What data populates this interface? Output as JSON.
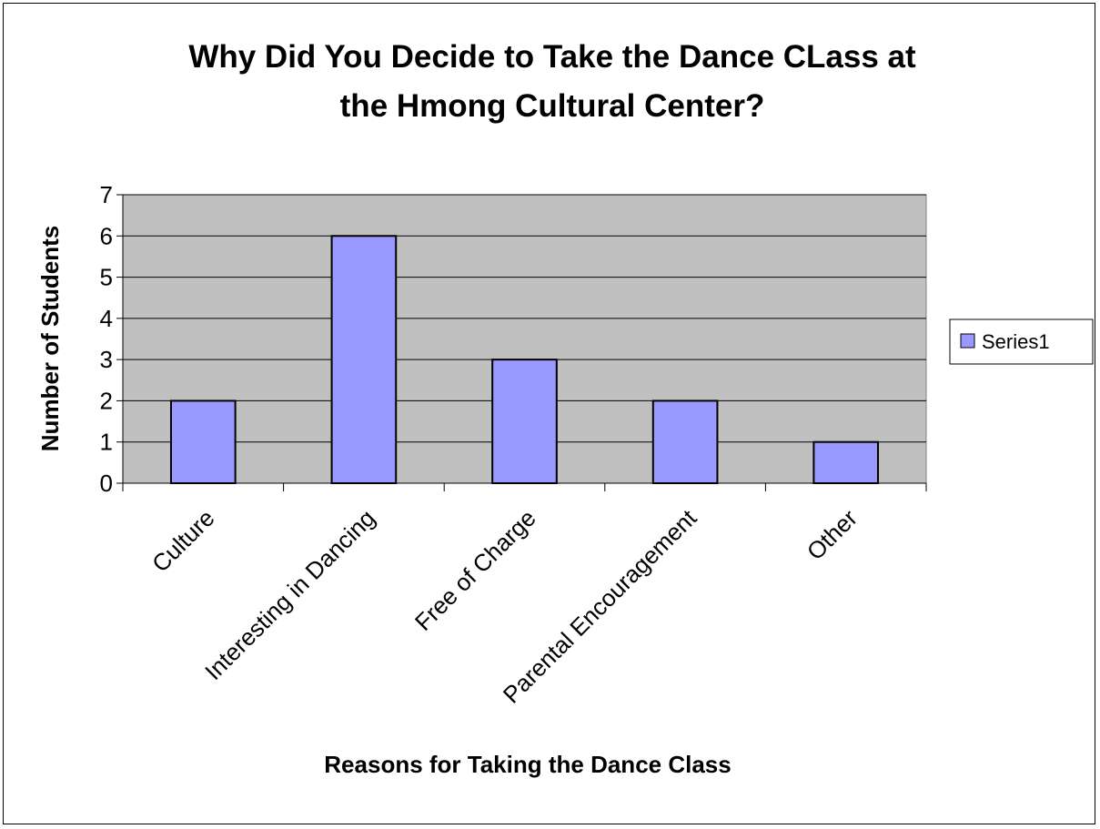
{
  "chart_data": {
    "type": "bar",
    "title_lines": [
      "Why Did You Decide to Take the Dance CLass at",
      "the Hmong Cultural Center?"
    ],
    "xlabel": "Reasons for Taking the Dance Class",
    "ylabel": "Number of Students",
    "categories": [
      "Culture",
      "Interesting in Dancing",
      "Free of Charge",
      "Parental Encouragement",
      "Other"
    ],
    "series": [
      {
        "name": "Series1",
        "values": [
          2,
          6,
          3,
          2,
          1
        ]
      }
    ],
    "ylim": [
      0,
      7
    ],
    "yticks": [
      0,
      1,
      2,
      3,
      4,
      5,
      6,
      7
    ],
    "grid": true,
    "legend_position": "right",
    "colors": {
      "bar_fill": "#9999ff",
      "plot_background": "#c0c0c0",
      "outline": "#000000"
    }
  }
}
